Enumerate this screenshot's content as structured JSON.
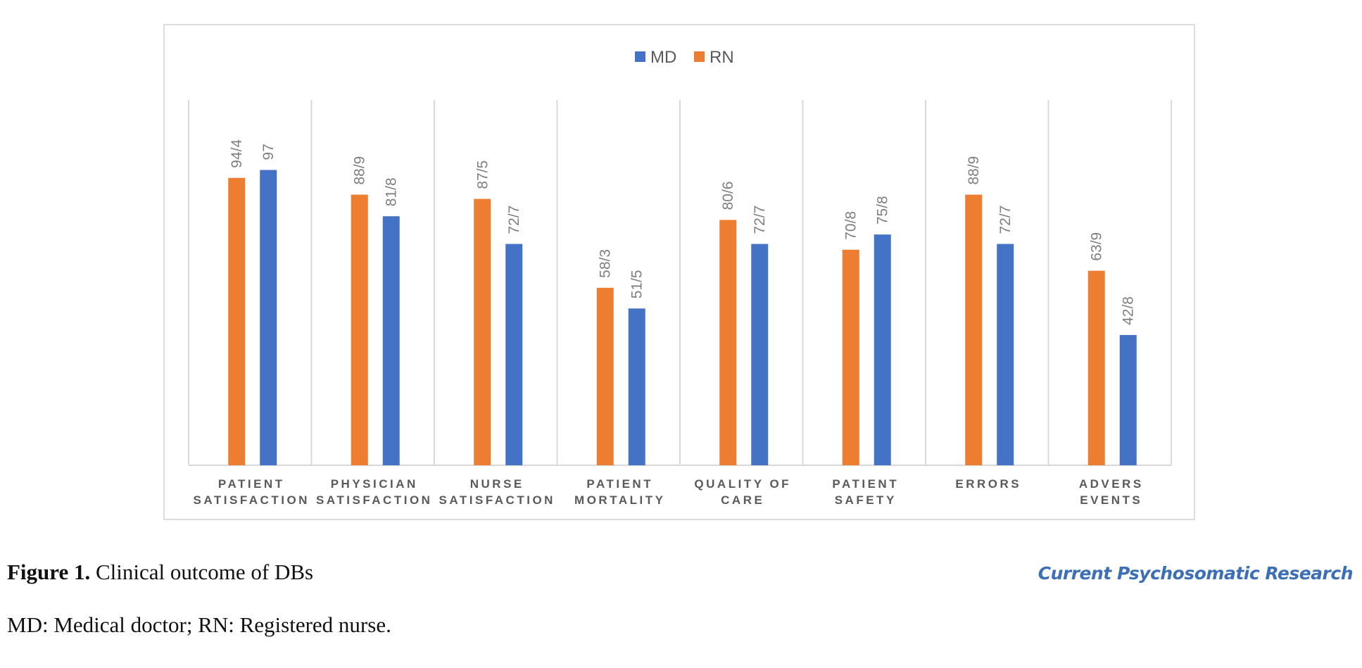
{
  "chart_data": {
    "type": "bar",
    "legend": [
      "MD",
      "RN"
    ],
    "legend_position": "top-center",
    "categories": [
      [
        "PATIENT",
        "SATISFACTION"
      ],
      [
        "PHYSICIAN",
        "SATISFACTION"
      ],
      [
        "NURSE",
        "SATISFACTION"
      ],
      [
        "PATIENT",
        "MORTALITY"
      ],
      [
        "QUALITY OF",
        "CARE"
      ],
      [
        "PATIENT",
        "SAFETY"
      ],
      [
        "ERRORS"
      ],
      [
        "ADVERS",
        "EVENTS"
      ]
    ],
    "series": [
      {
        "name": "RN",
        "color": "#ed7d31",
        "values": [
          94.4,
          88.9,
          87.5,
          58.3,
          80.6,
          70.8,
          88.9,
          63.9
        ],
        "labels": [
          "94/4",
          "88/9",
          "87/5",
          "58/3",
          "80/6",
          "70/8",
          "88/9",
          "63/9"
        ]
      },
      {
        "name": "MD",
        "color": "#4472c4",
        "values": [
          97,
          81.8,
          72.7,
          51.5,
          72.7,
          75.8,
          72.7,
          42.8
        ],
        "labels": [
          "97",
          "81/8",
          "72/7",
          "51/5",
          "72/7",
          "75/8",
          "72/7",
          "42/8"
        ]
      }
    ],
    "ylim": [
      0,
      120
    ],
    "grid": "vertical category separators",
    "xlabel": "",
    "ylabel": ""
  },
  "caption": {
    "figure_label": "Figure 1.",
    "figure_text": " Clinical outcome of DBs",
    "footnote": "MD: Medical doctor; RN: Registered nurse."
  },
  "journal_name": "Current Psychosomatic Research"
}
